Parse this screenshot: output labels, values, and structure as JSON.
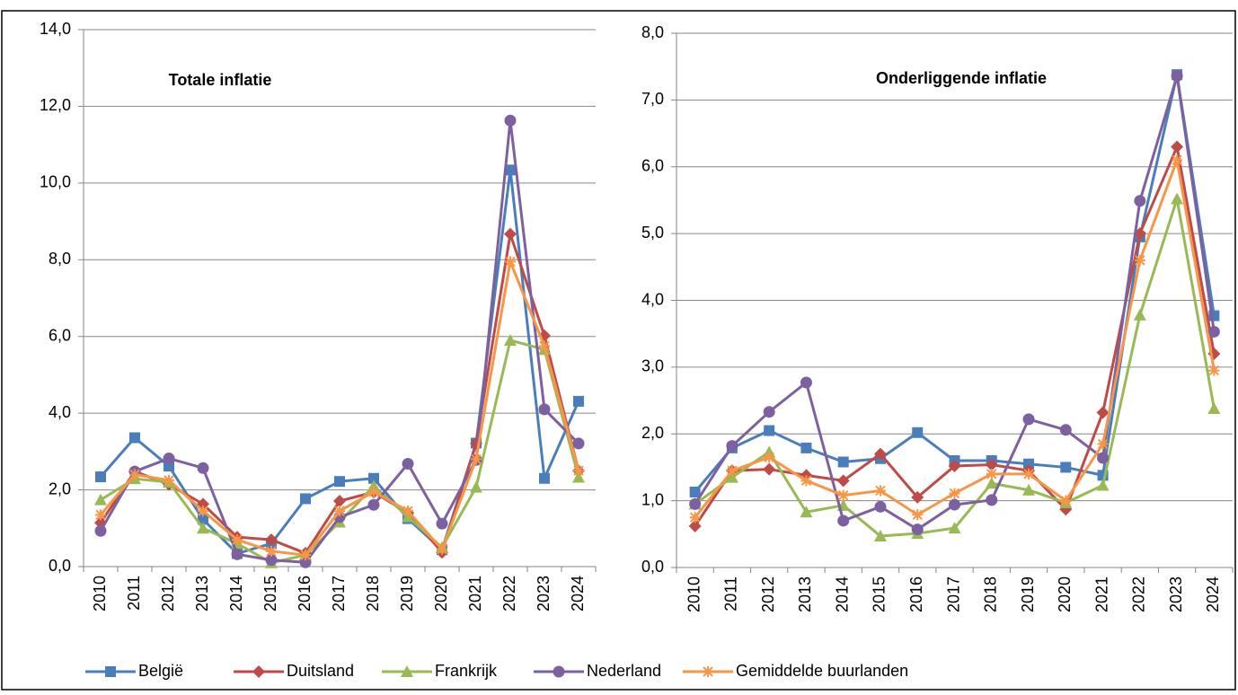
{
  "chart_data": [
    {
      "type": "line",
      "title": "Totale inflatie",
      "categories": [
        "2010",
        "2011",
        "2012",
        "2013",
        "2014",
        "2015",
        "2016",
        "2017",
        "2018",
        "2019",
        "2020",
        "2021",
        "2022",
        "2023",
        "2024"
      ],
      "ylim": [
        0,
        14
      ],
      "yticks": [
        {
          "value": 0,
          "label": "0,0"
        },
        {
          "value": 2,
          "label": "2,0"
        },
        {
          "value": 4,
          "label": "4,0"
        },
        {
          "value": 6,
          "label": "6,0"
        },
        {
          "value": 8,
          "label": "8,0"
        },
        {
          "value": 10,
          "label": "10,0"
        },
        {
          "value": 12,
          "label": "12,0"
        },
        {
          "value": 14,
          "label": "14,0"
        }
      ],
      "grid": true,
      "series": [
        {
          "name": "België",
          "color": "#4a7ebb",
          "marker": "square",
          "values": [
            2.34,
            3.36,
            2.62,
            1.23,
            0.34,
            0.6,
            1.77,
            2.22,
            2.3,
            1.25,
            0.44,
            3.22,
            10.34,
            2.3,
            4.31
          ]
        },
        {
          "name": "Duitsland",
          "color": "#be4b48",
          "marker": "diamond",
          "values": [
            1.14,
            2.48,
            2.14,
            1.63,
            0.77,
            0.7,
            0.35,
            1.71,
            1.94,
            1.4,
            0.37,
            3.21,
            8.67,
            6.02,
            2.5
          ]
        },
        {
          "name": "Frankrijk",
          "color": "#98b954",
          "marker": "triangle",
          "values": [
            1.74,
            2.29,
            2.2,
            1.0,
            0.6,
            0.1,
            0.3,
            1.16,
            2.1,
            1.3,
            0.5,
            2.07,
            5.9,
            5.66,
            2.33
          ]
        },
        {
          "name": "Nederland",
          "color": "#7d60a0",
          "marker": "circle",
          "values": [
            0.93,
            2.48,
            2.82,
            2.57,
            0.32,
            0.17,
            0.11,
            1.29,
            1.61,
            2.68,
            1.12,
            2.78,
            11.63,
            4.1,
            3.21
          ]
        },
        {
          "name": "Gemiddelde buurlanden",
          "color": "#f79646",
          "marker": "asterisk",
          "values": [
            1.35,
            2.4,
            2.25,
            1.45,
            0.7,
            0.4,
            0.3,
            1.45,
            1.95,
            1.45,
            0.45,
            2.8,
            7.95,
            5.75,
            2.5
          ]
        }
      ]
    },
    {
      "type": "line",
      "title": "Onderliggende inflatie",
      "categories": [
        "2010",
        "2011",
        "2012",
        "2013",
        "2014",
        "2015",
        "2016",
        "2017",
        "2018",
        "2019",
        "2020",
        "2021",
        "2022",
        "2023",
        "2024"
      ],
      "ylim": [
        0,
        8
      ],
      "yticks": [
        {
          "value": 0,
          "label": "0,0"
        },
        {
          "value": 1,
          "label": "1,0"
        },
        {
          "value": 2,
          "label": "2,0"
        },
        {
          "value": 3,
          "label": "3,0"
        },
        {
          "value": 4,
          "label": "4,0"
        },
        {
          "value": 5,
          "label": "5,0"
        },
        {
          "value": 6,
          "label": "6,0"
        },
        {
          "value": 7,
          "label": "7,0"
        },
        {
          "value": 8,
          "label": "8,0"
        }
      ],
      "grid": true,
      "series": [
        {
          "name": "België",
          "color": "#4a7ebb",
          "marker": "square",
          "values": [
            1.13,
            1.79,
            2.05,
            1.79,
            1.58,
            1.63,
            2.02,
            1.6,
            1.6,
            1.55,
            1.5,
            1.38,
            4.95,
            7.38,
            3.77
          ]
        },
        {
          "name": "Duitsland",
          "color": "#be4b48",
          "marker": "diamond",
          "values": [
            0.62,
            1.45,
            1.47,
            1.38,
            1.3,
            1.7,
            1.05,
            1.52,
            1.54,
            1.45,
            0.87,
            2.32,
            5.0,
            6.3,
            3.2
          ]
        },
        {
          "name": "Frankrijk",
          "color": "#98b954",
          "marker": "triangle",
          "values": [
            0.95,
            1.35,
            1.73,
            0.83,
            0.93,
            0.47,
            0.51,
            0.59,
            1.26,
            1.16,
            0.97,
            1.23,
            3.78,
            5.52,
            2.38
          ]
        },
        {
          "name": "Nederland",
          "color": "#7d60a0",
          "marker": "circle",
          "values": [
            0.95,
            1.82,
            2.33,
            2.77,
            0.7,
            0.91,
            0.57,
            0.94,
            1.01,
            2.22,
            2.06,
            1.64,
            5.49,
            7.36,
            3.53
          ]
        },
        {
          "name": "Gemiddelde buurlanden",
          "color": "#f79646",
          "marker": "asterisk",
          "values": [
            0.75,
            1.45,
            1.65,
            1.3,
            1.08,
            1.15,
            0.79,
            1.11,
            1.4,
            1.4,
            1.0,
            1.85,
            4.6,
            6.1,
            2.95
          ]
        }
      ]
    }
  ]
}
